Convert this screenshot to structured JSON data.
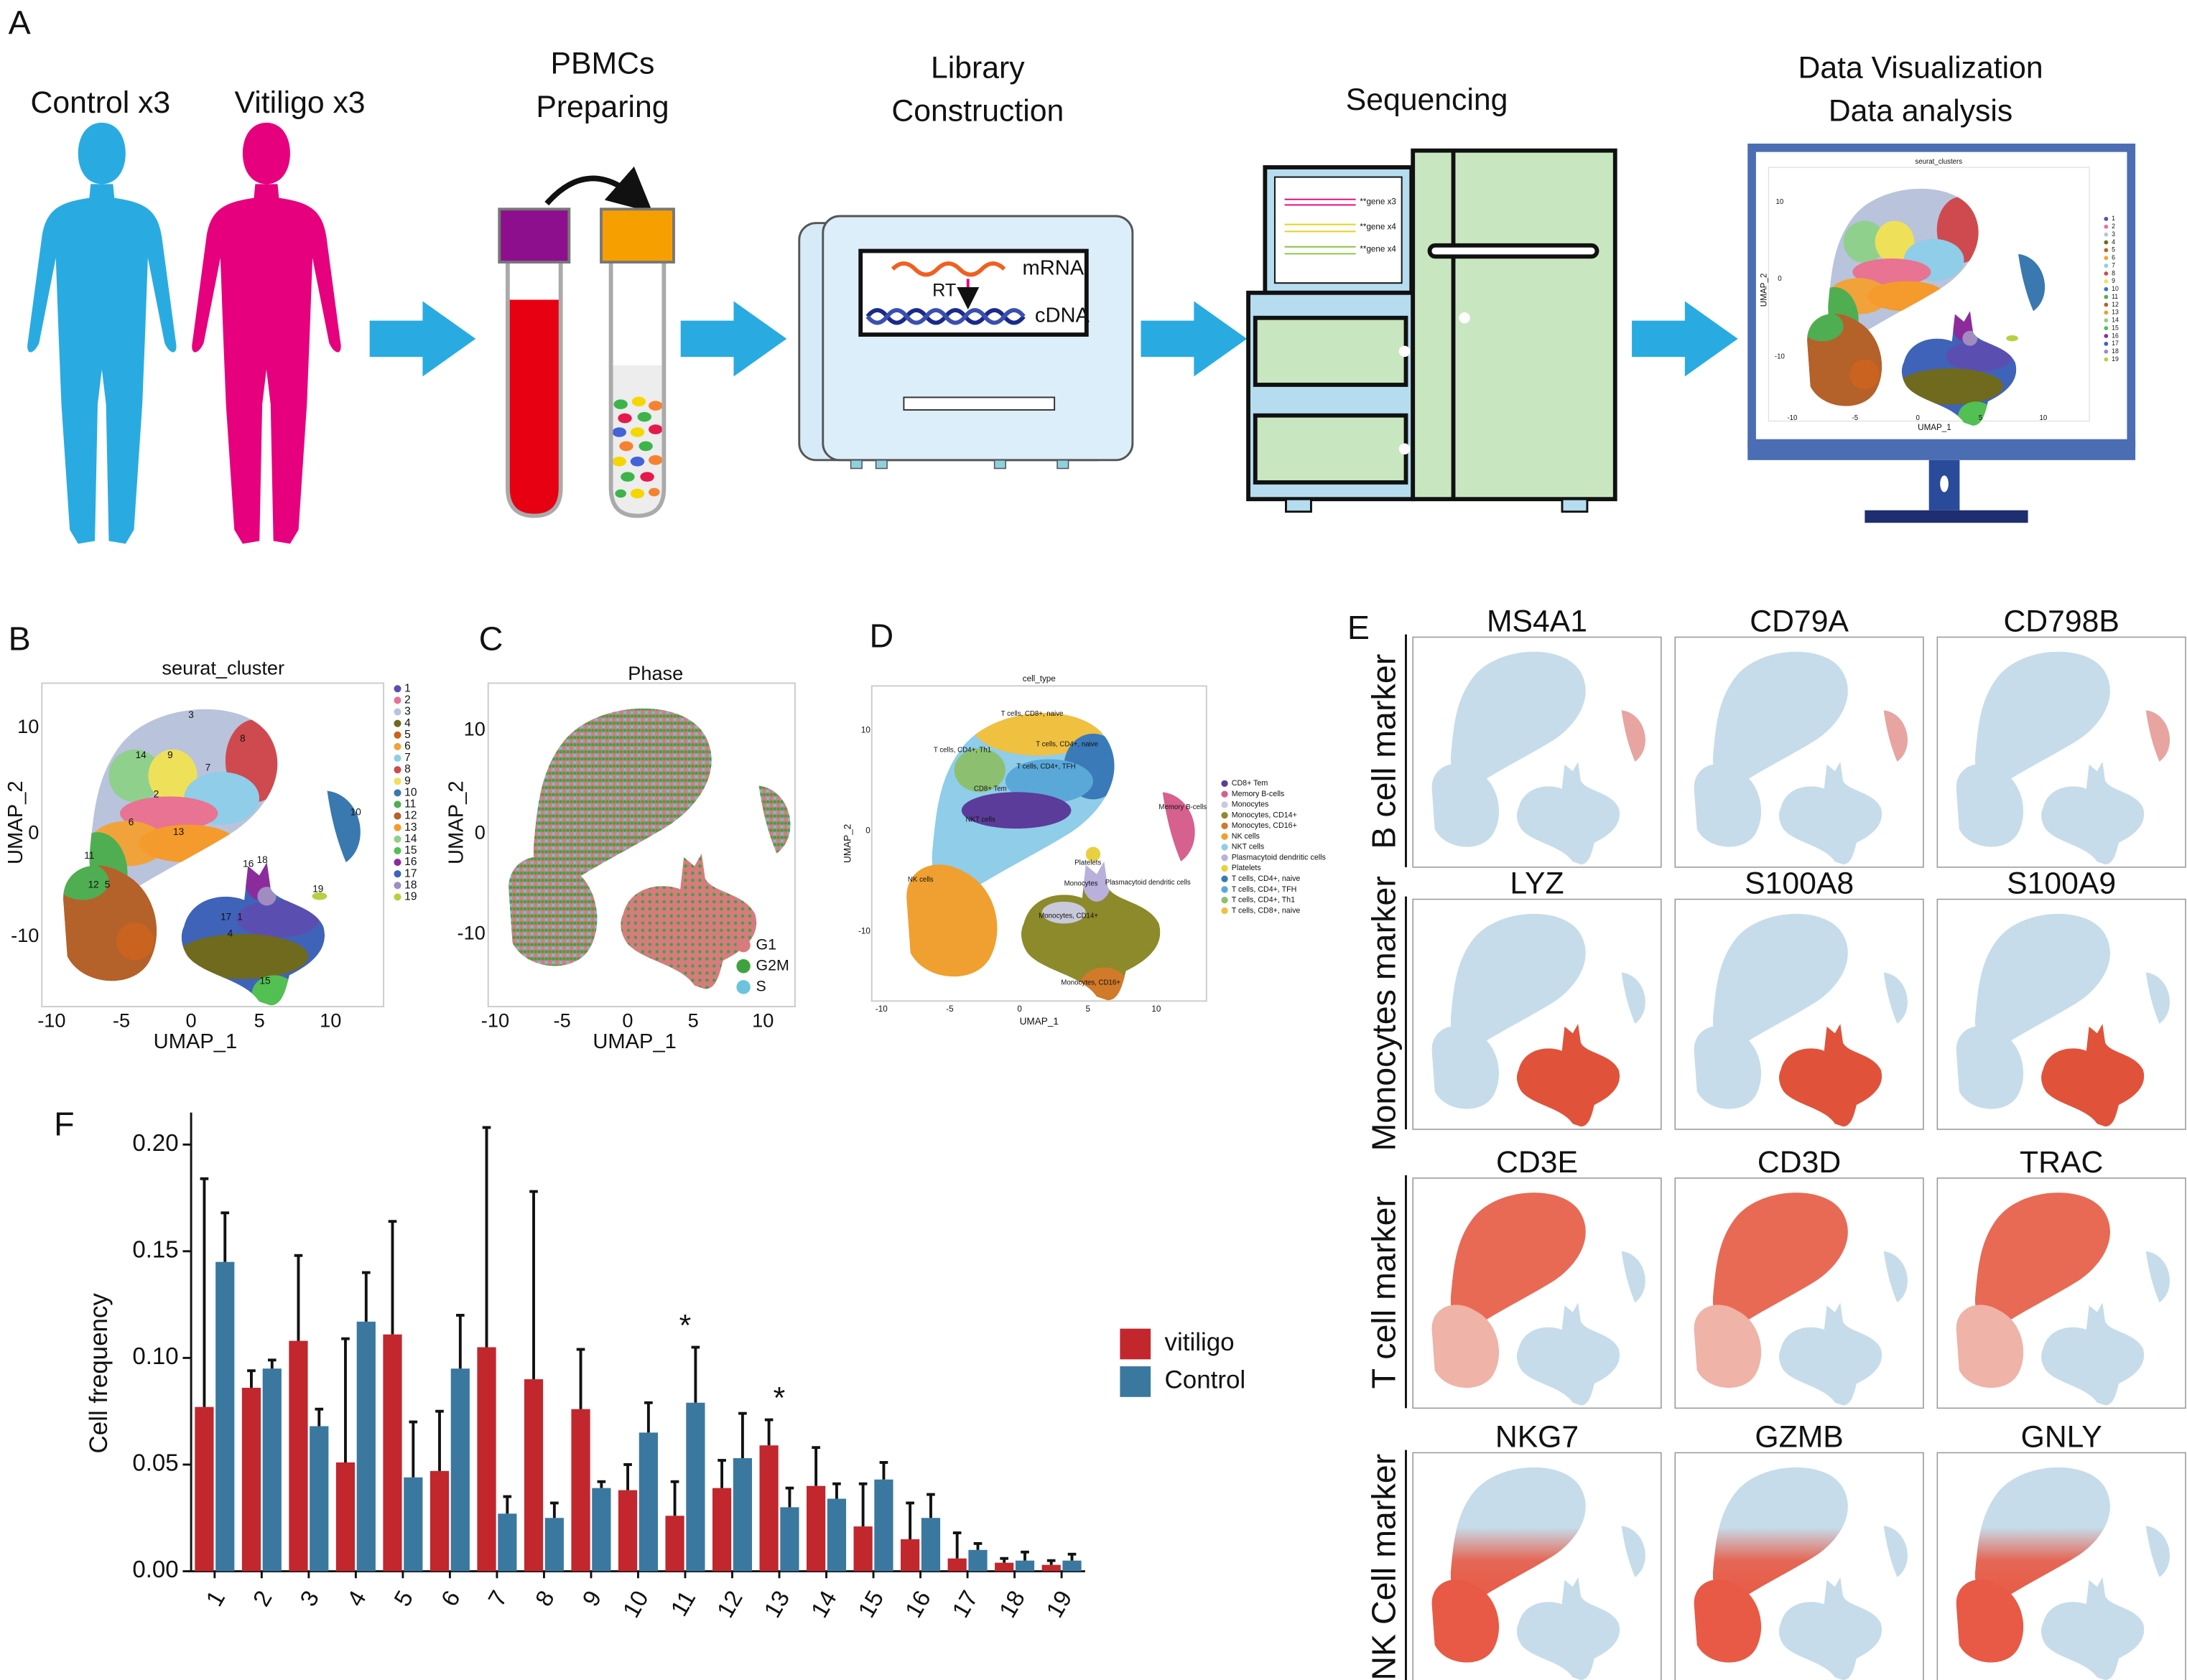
{
  "panel_a": {
    "label": "A",
    "control": "Control x3",
    "vitiligo": "Vitiligo x3",
    "step1": [
      "PBMCs",
      "Preparing"
    ],
    "step2": [
      "Library",
      "Construction"
    ],
    "step3": "Sequencing",
    "step4": [
      "Data Visualization",
      "Data analysis"
    ],
    "mrna": "mRNA",
    "rt": "RT",
    "cdna": "cDNA",
    "genes": [
      "**gene x3",
      "**gene x4",
      "**gene x4"
    ],
    "screen": {
      "title": "seurat_clusters",
      "xlabel": "UMAP_1",
      "ylabel": "UMAP_2",
      "xticks": [
        "-10",
        "-5",
        "0",
        "5",
        "10"
      ],
      "yticks": [
        "10",
        "0",
        "-10"
      ],
      "legend": [
        "1",
        "2",
        "3",
        "4",
        "5",
        "6",
        "7",
        "8",
        "9",
        "10",
        "11",
        "12",
        "13",
        "14",
        "15",
        "16",
        "17",
        "18",
        "19"
      ]
    }
  },
  "panel_b": {
    "label": "B",
    "title": "seurat_cluster",
    "xlabel": "UMAP_1",
    "ylabel": "UMAP_2",
    "xticks": [
      "-10",
      "-5",
      "0",
      "5",
      "10"
    ],
    "yticks": [
      "10",
      "0",
      "-10"
    ],
    "legend": [
      {
        "label": "1",
        "color": "#5a4fb0"
      },
      {
        "label": "2",
        "color": "#e87392"
      },
      {
        "label": "3",
        "color": "#b9c3dc"
      },
      {
        "label": "4",
        "color": "#6f6a1e"
      },
      {
        "label": "5",
        "color": "#c9631f"
      },
      {
        "label": "6",
        "color": "#f2a23a"
      },
      {
        "label": "7",
        "color": "#8fcde8"
      },
      {
        "label": "8",
        "color": "#cf4a4e"
      },
      {
        "label": "9",
        "color": "#efe05a"
      },
      {
        "label": "10",
        "color": "#3a78b0"
      },
      {
        "label": "11",
        "color": "#4fae52"
      },
      {
        "label": "12",
        "color": "#b5612a"
      },
      {
        "label": "13",
        "color": "#f59a2c"
      },
      {
        "label": "14",
        "color": "#8fd08c"
      },
      {
        "label": "15",
        "color": "#52c052"
      },
      {
        "label": "16",
        "color": "#8c2c9c"
      },
      {
        "label": "17",
        "color": "#3f63b8"
      },
      {
        "label": "18",
        "color": "#a08cc0"
      },
      {
        "label": "19",
        "color": "#b8d040"
      }
    ],
    "cluster_labels": [
      "3",
      "8",
      "14",
      "9",
      "7",
      "2",
      "6",
      "13",
      "11",
      "12",
      "5",
      "10",
      "18",
      "16",
      "19",
      "17",
      "1",
      "4",
      "15"
    ]
  },
  "panel_c": {
    "label": "C",
    "title": "Phase",
    "xlabel": "UMAP_1",
    "ylabel": "UMAP_2",
    "xticks": [
      "-10",
      "-5",
      "0",
      "5",
      "10"
    ],
    "yticks": [
      "10",
      "0",
      "-10"
    ],
    "legend": [
      {
        "label": "G1",
        "color": "#d77b7f"
      },
      {
        "label": "G2M",
        "color": "#3fa33d"
      },
      {
        "label": "S",
        "color": "#6cc3dd"
      }
    ]
  },
  "panel_d": {
    "label": "D",
    "title": "cell_type",
    "xlabel": "UMAP_1",
    "ylabel": "UMAP_2",
    "xticks": [
      "-10",
      "-5",
      "0",
      "5",
      "10"
    ],
    "yticks": [
      "10",
      "0",
      "-10"
    ],
    "legend": [
      {
        "label": "CD8+ Tem",
        "color": "#5b3c9a"
      },
      {
        "label": "Memory B-cells",
        "color": "#d6608e"
      },
      {
        "label": "Monocytes",
        "color": "#c9c9dc"
      },
      {
        "label": "Monocytes, CD14+",
        "color": "#8c8a2a"
      },
      {
        "label": "Monocytes, CD16+",
        "color": "#d07a2a"
      },
      {
        "label": "NK cells",
        "color": "#f0a030"
      },
      {
        "label": "NKT cells",
        "color": "#8fcde9"
      },
      {
        "label": "Plasmacytoid dendritic cells",
        "color": "#b9b0dc"
      },
      {
        "label": "Platelets",
        "color": "#e8d040"
      },
      {
        "label": "T cells, CD4+, naive",
        "color": "#3a7ab8"
      },
      {
        "label": "T cells, CD4+, TFH",
        "color": "#5aa8d8"
      },
      {
        "label": "T cells, CD4+, Th1",
        "color": "#8cc070"
      },
      {
        "label": "T cells, CD8+, naive",
        "color": "#f0c040"
      }
    ],
    "cell_labels": [
      "T cells, CD8+, naive",
      "T cells, CD4+, naive",
      "T cells, CD4+, Th1",
      "T cells, CD4+, TFH",
      "CD8+ Tem",
      "NKT cells",
      "NK cells",
      "Memory B-cells",
      "Platelets",
      "Monocytes",
      "Plasmacytoid dendritic cells",
      "Monocytes, CD14+",
      "Monocytes, CD16+"
    ]
  },
  "panel_e": {
    "label": "E",
    "rows": [
      {
        "label": "B cell marker",
        "genes": [
          "MS4A1",
          "CD79A",
          "CD798B"
        ]
      },
      {
        "label": "Monocytes marker",
        "genes": [
          "LYZ",
          "S100A8",
          "S100A9"
        ]
      },
      {
        "label": "T cell marker",
        "genes": [
          "CD3E",
          "CD3D",
          "TRAC"
        ]
      },
      {
        "label": "NK Cell marker",
        "genes": [
          "NKG7",
          "GZMB",
          "GNLY"
        ]
      }
    ]
  },
  "chart_data": {
    "type": "bar",
    "panel": "F",
    "ylabel": "Cell frequency",
    "categories": [
      "1",
      "2",
      "3",
      "4",
      "5",
      "6",
      "7",
      "8",
      "9",
      "10",
      "11",
      "12",
      "13",
      "14",
      "15",
      "16",
      "17",
      "18",
      "19"
    ],
    "series": [
      {
        "name": "vitiligo",
        "color": "#c1272d",
        "values": [
          0.077,
          0.086,
          0.108,
          0.051,
          0.111,
          0.047,
          0.105,
          0.09,
          0.076,
          0.038,
          0.026,
          0.039,
          0.059,
          0.04,
          0.021,
          0.015,
          0.006,
          0.004,
          0.003
        ],
        "errors": [
          0.107,
          0.008,
          0.04,
          0.058,
          0.053,
          0.028,
          0.103,
          0.088,
          0.028,
          0.012,
          0.016,
          0.013,
          0.012,
          0.018,
          0.02,
          0.017,
          0.012,
          0.002,
          0.002
        ]
      },
      {
        "name": "Control",
        "color": "#3a78a0",
        "values": [
          0.145,
          0.095,
          0.068,
          0.117,
          0.044,
          0.095,
          0.027,
          0.025,
          0.039,
          0.065,
          0.079,
          0.053,
          0.03,
          0.034,
          0.043,
          0.025,
          0.01,
          0.005,
          0.005
        ],
        "errors": [
          0.023,
          0.004,
          0.008,
          0.023,
          0.026,
          0.025,
          0.008,
          0.007,
          0.003,
          0.014,
          0.026,
          0.021,
          0.009,
          0.007,
          0.008,
          0.011,
          0.003,
          0.004,
          0.003
        ]
      }
    ],
    "ylim": [
      0,
      0.215
    ],
    "yticks": [
      {
        "value": 0,
        "label": "0.00"
      },
      {
        "value": 0.05,
        "label": "0.05"
      },
      {
        "value": 0.1,
        "label": "0.10"
      },
      {
        "value": 0.15,
        "label": "0.15"
      },
      {
        "value": 0.2,
        "label": "0.20"
      }
    ],
    "legend": "right",
    "annotations": [
      {
        "text": "*",
        "category": "11"
      },
      {
        "text": "*",
        "category": "13"
      }
    ]
  }
}
